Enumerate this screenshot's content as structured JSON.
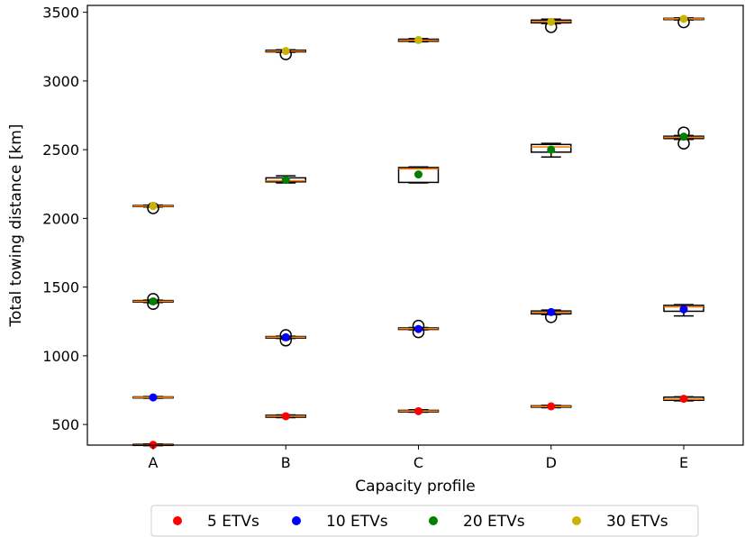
{
  "chart_data": {
    "type": "box",
    "title": "",
    "xlabel": "Capacity profile",
    "ylabel": "Total towing distance [km]",
    "categories": [
      "A",
      "B",
      "C",
      "D",
      "E"
    ],
    "ylim": [
      350,
      3550
    ],
    "yticks": [
      500,
      1000,
      1500,
      2000,
      2500,
      3000,
      3500
    ],
    "grid": false,
    "legend_position": "bottom-center",
    "series": [
      {
        "name": "5 ETVs",
        "color": "#ff0000",
        "means": [
          352,
          560,
          597,
          632,
          687
        ],
        "boxes": [
          {
            "q1": 348,
            "median": 352,
            "q3": 356,
            "whislo": 346,
            "whishi": 358,
            "fliers": []
          },
          {
            "q1": 553,
            "median": 560,
            "q3": 567,
            "whislo": 550,
            "whishi": 570,
            "fliers": []
          },
          {
            "q1": 592,
            "median": 598,
            "q3": 603,
            "whislo": 589,
            "whishi": 607,
            "fliers": []
          },
          {
            "q1": 626,
            "median": 631,
            "q3": 636,
            "whislo": 622,
            "whishi": 639,
            "fliers": []
          },
          {
            "q1": 676,
            "median": 684,
            "q3": 699,
            "whislo": 672,
            "whishi": 702,
            "fliers": []
          }
        ]
      },
      {
        "name": "10 ETVs",
        "color": "#0000ff",
        "means": [
          697,
          1135,
          1195,
          1318,
          1338
        ],
        "boxes": [
          {
            "q1": 693,
            "median": 697,
            "q3": 701,
            "whislo": 691,
            "whishi": 703,
            "fliers": []
          },
          {
            "q1": 1129,
            "median": 1135,
            "q3": 1140,
            "whislo": 1126,
            "whishi": 1143,
            "fliers": [
              1112,
              1150
            ]
          },
          {
            "q1": 1192,
            "median": 1198,
            "q3": 1203,
            "whislo": 1189,
            "whishi": 1206,
            "fliers": [
              1172,
              1218
            ]
          },
          {
            "q1": 1305,
            "median": 1317,
            "q3": 1326,
            "whislo": 1300,
            "whishi": 1333,
            "fliers": [
              1282
            ]
          },
          {
            "q1": 1324,
            "median": 1356,
            "q3": 1367,
            "whislo": 1290,
            "whishi": 1372,
            "fliers": []
          }
        ]
      },
      {
        "name": "20 ETVs",
        "color": "#008000",
        "means": [
          1396,
          2280,
          2320,
          2500,
          2595
        ],
        "boxes": [
          {
            "q1": 1391,
            "median": 1396,
            "q3": 1402,
            "whislo": 1388,
            "whishi": 1405,
            "fliers": [
              1378,
              1413
            ]
          },
          {
            "q1": 2266,
            "median": 2274,
            "q3": 2295,
            "whislo": 2258,
            "whishi": 2310,
            "fliers": []
          },
          {
            "q1": 2262,
            "median": 2360,
            "q3": 2370,
            "whislo": 2258,
            "whishi": 2375,
            "fliers": []
          },
          {
            "q1": 2482,
            "median": 2520,
            "q3": 2538,
            "whislo": 2447,
            "whishi": 2546,
            "fliers": []
          },
          {
            "q1": 2581,
            "median": 2590,
            "q3": 2598,
            "whislo": 2575,
            "whishi": 2603,
            "fliers": [
              2545,
              2625
            ]
          }
        ]
      },
      {
        "name": "30 ETVs",
        "color": "#c8b400",
        "means": [
          2090,
          3218,
          3298,
          3430,
          3452
        ],
        "boxes": [
          {
            "q1": 2086,
            "median": 2090,
            "q3": 2094,
            "whislo": 2083,
            "whishi": 2097,
            "fliers": [
              2075
            ]
          },
          {
            "q1": 3212,
            "median": 3218,
            "q3": 3224,
            "whislo": 3209,
            "whishi": 3227,
            "fliers": [
              3195
            ]
          },
          {
            "q1": 3289,
            "median": 3296,
            "q3": 3304,
            "whislo": 3285,
            "whishi": 3308,
            "fliers": []
          },
          {
            "q1": 3423,
            "median": 3433,
            "q3": 3443,
            "whislo": 3418,
            "whishi": 3450,
            "fliers": [
              3393
            ]
          },
          {
            "q1": 3447,
            "median": 3452,
            "q3": 3456,
            "whislo": 3444,
            "whishi": 3459,
            "fliers": [
              3428
            ]
          }
        ]
      }
    ]
  }
}
